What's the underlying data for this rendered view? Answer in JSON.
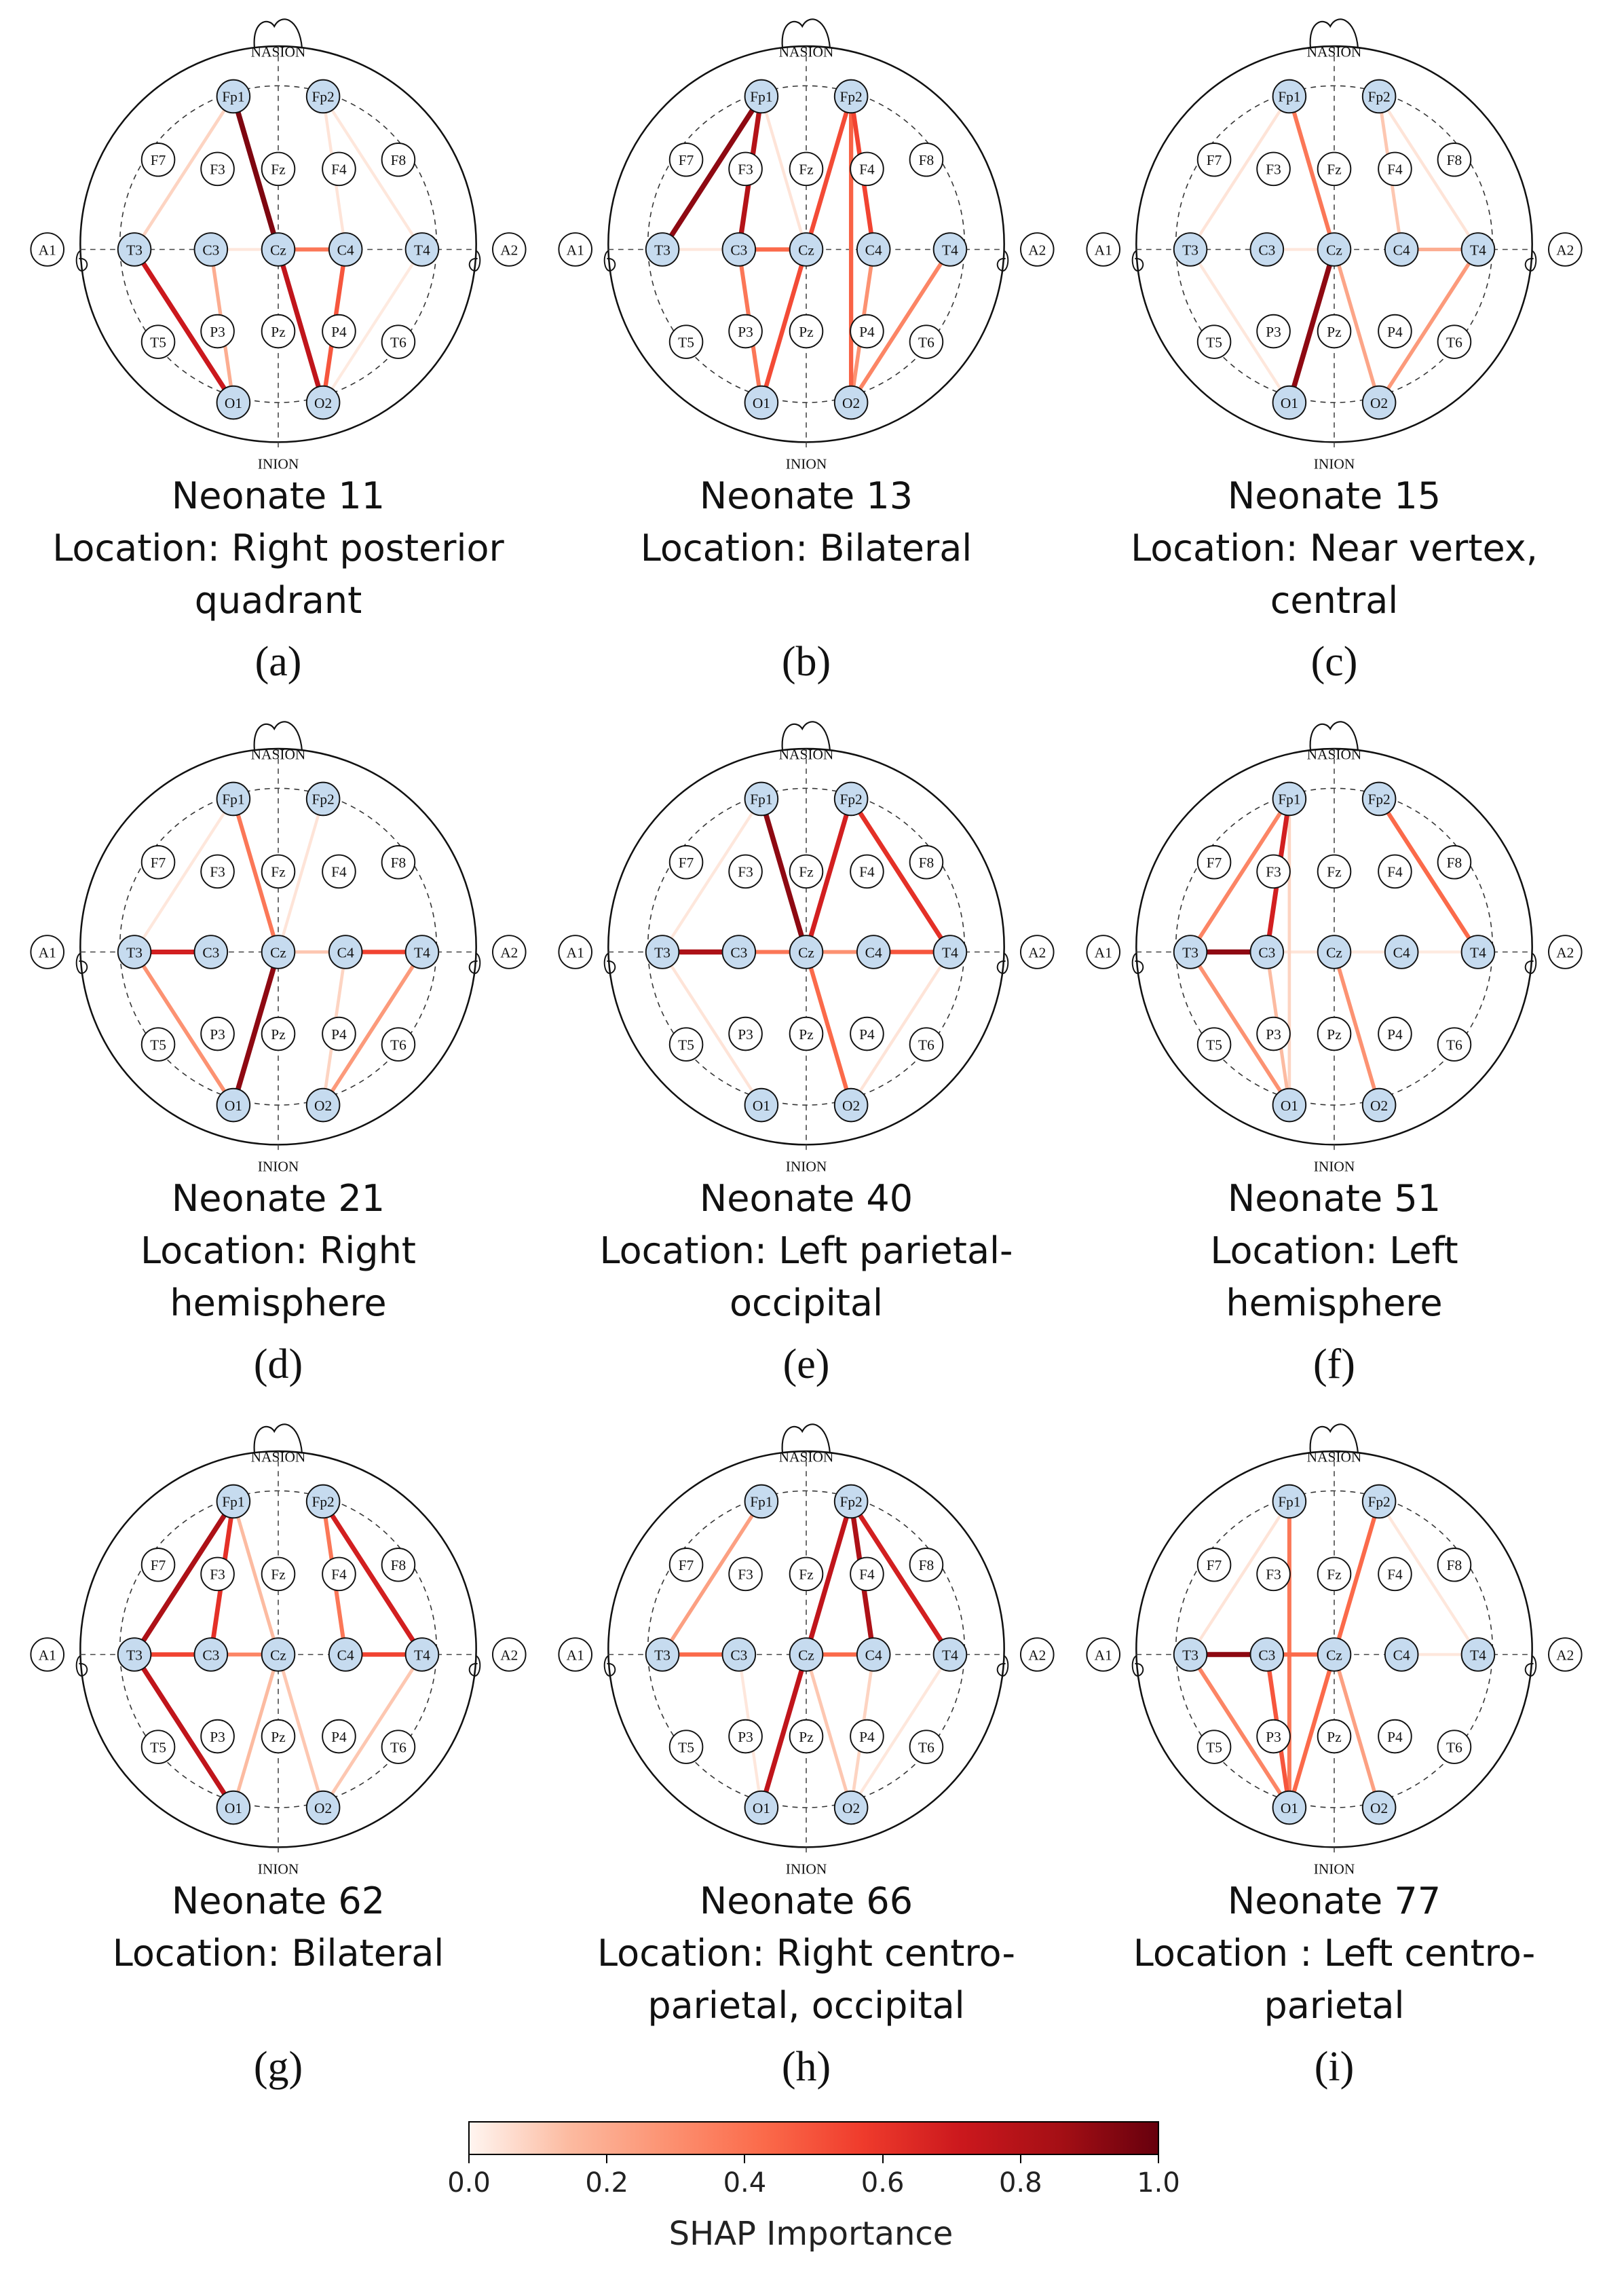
{
  "colors": {
    "active_electrode": "#c6dbef",
    "passive_electrode": "#ffffff",
    "scale_low": "#fff5f0",
    "scale_mid": "#fb6a4a",
    "scale_high": "#67000d"
  },
  "landmarks": {
    "nasion": "NASION",
    "inion": "INION"
  },
  "electrodes": [
    {
      "id": "Fp1",
      "label": "Fp1"
    },
    {
      "id": "Fp2",
      "label": "Fp2"
    },
    {
      "id": "F7",
      "label": "F7"
    },
    {
      "id": "F3",
      "label": "F3"
    },
    {
      "id": "Fz",
      "label": "Fz"
    },
    {
      "id": "F4",
      "label": "F4"
    },
    {
      "id": "F8",
      "label": "F8"
    },
    {
      "id": "A1",
      "label": "A1"
    },
    {
      "id": "T3",
      "label": "T3"
    },
    {
      "id": "C3",
      "label": "C3"
    },
    {
      "id": "Cz",
      "label": "Cz"
    },
    {
      "id": "C4",
      "label": "C4"
    },
    {
      "id": "T4",
      "label": "T4"
    },
    {
      "id": "A2",
      "label": "A2"
    },
    {
      "id": "T5",
      "label": "T5"
    },
    {
      "id": "P3",
      "label": "P3"
    },
    {
      "id": "Pz",
      "label": "Pz"
    },
    {
      "id": "P4",
      "label": "P4"
    },
    {
      "id": "T6",
      "label": "T6"
    },
    {
      "id": "O1",
      "label": "O1"
    },
    {
      "id": "O2",
      "label": "O2"
    }
  ],
  "active_electrodes": [
    "Fp1",
    "Fp2",
    "T3",
    "C3",
    "Cz",
    "C4",
    "T4",
    "O1",
    "O2"
  ],
  "panels": [
    {
      "id": "a",
      "sublabel": "(a)",
      "caption": [
        "Neonate 11",
        "Location: Right posterior",
        "quadrant"
      ],
      "edges": [
        {
          "from": "Fp1",
          "to": "Cz",
          "shap": 0.97
        },
        {
          "from": "Fp1",
          "to": "O2",
          "shap": 0.85
        },
        {
          "from": "T3",
          "to": "O1",
          "shap": 0.82
        },
        {
          "from": "C4",
          "to": "O2",
          "shap": 0.65
        },
        {
          "from": "Cz",
          "to": "C4",
          "shap": 0.55
        },
        {
          "from": "C3",
          "to": "O1",
          "shap": 0.35
        },
        {
          "from": "Fp1",
          "to": "T3",
          "shap": 0.2
        },
        {
          "from": "Fp2",
          "to": "C4",
          "shap": 0.12
        },
        {
          "from": "Fp2",
          "to": "T4",
          "shap": 0.1
        },
        {
          "from": "C3",
          "to": "Cz",
          "shap": 0.1
        },
        {
          "from": "T4",
          "to": "O2",
          "shap": 0.08
        }
      ]
    },
    {
      "id": "b",
      "sublabel": "(b)",
      "caption": [
        "Neonate 13",
        "Location: Bilateral"
      ],
      "edges": [
        {
          "from": "Fp1",
          "to": "T3",
          "shap": 0.95
        },
        {
          "from": "Fp1",
          "to": "C3",
          "shap": 0.88
        },
        {
          "from": "Fp2",
          "to": "C4",
          "shap": 0.7
        },
        {
          "from": "Fp2",
          "to": "O1",
          "shap": 0.68
        },
        {
          "from": "Fp2",
          "to": "O2",
          "shap": 0.62
        },
        {
          "from": "C3",
          "to": "Cz",
          "shap": 0.6
        },
        {
          "from": "C3",
          "to": "O1",
          "shap": 0.55
        },
        {
          "from": "T4",
          "to": "O2",
          "shap": 0.5
        },
        {
          "from": "C4",
          "to": "O2",
          "shap": 0.45
        },
        {
          "from": "Fp1",
          "to": "Cz",
          "shap": 0.12
        },
        {
          "from": "T3",
          "to": "C3",
          "shap": 0.1
        }
      ]
    },
    {
      "id": "c",
      "sublabel": "(c)",
      "caption": [
        "Neonate 15",
        "Location: Near vertex,",
        "central"
      ],
      "edges": [
        {
          "from": "Cz",
          "to": "O1",
          "shap": 0.95
        },
        {
          "from": "Fp1",
          "to": "Cz",
          "shap": 0.55
        },
        {
          "from": "T4",
          "to": "O2",
          "shap": 0.42
        },
        {
          "from": "Cz",
          "to": "O2",
          "shap": 0.38
        },
        {
          "from": "C4",
          "to": "T4",
          "shap": 0.35
        },
        {
          "from": "Fp2",
          "to": "C4",
          "shap": 0.25
        },
        {
          "from": "Fp1",
          "to": "T3",
          "shap": 0.12
        },
        {
          "from": "C3",
          "to": "Cz",
          "shap": 0.1
        },
        {
          "from": "T3",
          "to": "O1",
          "shap": 0.1
        },
        {
          "from": "Fp2",
          "to": "T4",
          "shap": 0.12
        }
      ]
    },
    {
      "id": "d",
      "sublabel": "(d)",
      "caption": [
        "Neonate 21",
        "Location: Right",
        "hemisphere"
      ],
      "edges": [
        {
          "from": "Cz",
          "to": "O1",
          "shap": 0.95
        },
        {
          "from": "T3",
          "to": "C3",
          "shap": 0.8
        },
        {
          "from": "C4",
          "to": "T4",
          "shap": 0.7
        },
        {
          "from": "Fp1",
          "to": "Cz",
          "shap": 0.55
        },
        {
          "from": "T3",
          "to": "O1",
          "shap": 0.45
        },
        {
          "from": "T4",
          "to": "O2",
          "shap": 0.42
        },
        {
          "from": "Cz",
          "to": "C4",
          "shap": 0.25
        },
        {
          "from": "C4",
          "to": "O2",
          "shap": 0.2
        },
        {
          "from": "Fp2",
          "to": "Cz",
          "shap": 0.12
        },
        {
          "from": "Fp1",
          "to": "T3",
          "shap": 0.1
        }
      ]
    },
    {
      "id": "e",
      "sublabel": "(e)",
      "caption": [
        "Neonate 40",
        "Location: Left parietal-",
        "occipital"
      ],
      "edges": [
        {
          "from": "T3",
          "to": "C3",
          "shap": 0.9
        },
        {
          "from": "Fp1",
          "to": "Cz",
          "shap": 0.95
        },
        {
          "from": "Fp2",
          "to": "T4",
          "shap": 0.75
        },
        {
          "from": "Fp2",
          "to": "Cz",
          "shap": 0.8
        },
        {
          "from": "C4",
          "to": "T4",
          "shap": 0.65
        },
        {
          "from": "Cz",
          "to": "O2",
          "shap": 0.6
        },
        {
          "from": "C3",
          "to": "Cz",
          "shap": 0.55
        },
        {
          "from": "Cz",
          "to": "C4",
          "shap": 0.45
        },
        {
          "from": "Fp1",
          "to": "O2",
          "shap": 0.5
        },
        {
          "from": "T3",
          "to": "O1",
          "shap": 0.12
        },
        {
          "from": "T4",
          "to": "O2",
          "shap": 0.12
        },
        {
          "from": "Fp1",
          "to": "T3",
          "shap": 0.1
        }
      ]
    },
    {
      "id": "f",
      "sublabel": "(f)",
      "caption": [
        "Neonate 51",
        "Location: Left",
        "hemisphere"
      ],
      "edges": [
        {
          "from": "T3",
          "to": "C3",
          "shap": 0.95
        },
        {
          "from": "Fp1",
          "to": "C3",
          "shap": 0.8
        },
        {
          "from": "Fp1",
          "to": "T3",
          "shap": 0.5
        },
        {
          "from": "Fp2",
          "to": "T4",
          "shap": 0.6
        },
        {
          "from": "T3",
          "to": "O1",
          "shap": 0.45
        },
        {
          "from": "Cz",
          "to": "O2",
          "shap": 0.45
        },
        {
          "from": "C3",
          "to": "O1",
          "shap": 0.3
        },
        {
          "from": "Fp1",
          "to": "O1",
          "shap": 0.2
        },
        {
          "from": "C3",
          "to": "Cz",
          "shap": 0.12
        },
        {
          "from": "Cz",
          "to": "C4",
          "shap": 0.1
        },
        {
          "from": "C4",
          "to": "T4",
          "shap": 0.08
        }
      ]
    },
    {
      "id": "g",
      "sublabel": "(g)",
      "caption": [
        "Neonate 62",
        "Location: Bilateral"
      ],
      "edges": [
        {
          "from": "Fp1",
          "to": "T3",
          "shap": 0.9
        },
        {
          "from": "T3",
          "to": "O1",
          "shap": 0.85
        },
        {
          "from": "Fp2",
          "to": "T4",
          "shap": 0.8
        },
        {
          "from": "C4",
          "to": "T4",
          "shap": 0.7
        },
        {
          "from": "T3",
          "to": "C3",
          "shap": 0.7
        },
        {
          "from": "Fp1",
          "to": "C3",
          "shap": 0.75
        },
        {
          "from": "Fp2",
          "to": "C4",
          "shap": 0.55
        },
        {
          "from": "C3",
          "to": "Cz",
          "shap": 0.5
        },
        {
          "from": "Cz",
          "to": "O2",
          "shap": 0.25
        },
        {
          "from": "T4",
          "to": "O2",
          "shap": 0.25
        },
        {
          "from": "Fp1",
          "to": "Cz",
          "shap": 0.3
        },
        {
          "from": "Cz",
          "to": "O1",
          "shap": 0.3
        }
      ]
    },
    {
      "id": "h",
      "sublabel": "(h)",
      "caption": [
        "Neonate 66",
        "Location: Right centro-",
        "parietal, occipital"
      ],
      "edges": [
        {
          "from": "Fp2",
          "to": "O1",
          "shap": 0.85
        },
        {
          "from": "Fp2",
          "to": "C4",
          "shap": 0.9
        },
        {
          "from": "Fp2",
          "to": "T4",
          "shap": 0.8
        },
        {
          "from": "T3",
          "to": "C3",
          "shap": 0.6
        },
        {
          "from": "Cz",
          "to": "C4",
          "shap": 0.6
        },
        {
          "from": "Fp1",
          "to": "T3",
          "shap": 0.4
        },
        {
          "from": "Fp2",
          "to": "Cz",
          "shap": 0.3
        },
        {
          "from": "Cz",
          "to": "O2",
          "shap": 0.25
        },
        {
          "from": "C4",
          "to": "O2",
          "shap": 0.2
        },
        {
          "from": "C3",
          "to": "O1",
          "shap": 0.1
        },
        {
          "from": "T4",
          "to": "O2",
          "shap": 0.1
        }
      ]
    },
    {
      "id": "i",
      "sublabel": "(i)",
      "caption": [
        "Neonate 77",
        "Location : Left centro-",
        "parietal"
      ],
      "edges": [
        {
          "from": "T3",
          "to": "C3",
          "shap": 0.95
        },
        {
          "from": "C3",
          "to": "Cz",
          "shap": 0.6
        },
        {
          "from": "Fp1",
          "to": "O1",
          "shap": 0.55
        },
        {
          "from": "Fp2",
          "to": "O1",
          "shap": 0.6
        },
        {
          "from": "T3",
          "to": "O1",
          "shap": 0.5
        },
        {
          "from": "C3",
          "to": "O1",
          "shap": 0.65
        },
        {
          "from": "Cz",
          "to": "O2",
          "shap": 0.4
        },
        {
          "from": "Fp1",
          "to": "T3",
          "shap": 0.12
        },
        {
          "from": "C4",
          "to": "T4",
          "shap": 0.1
        },
        {
          "from": "Fp2",
          "to": "T4",
          "shap": 0.1
        }
      ]
    }
  ],
  "colorbar": {
    "title": "SHAP Importance",
    "min": 0.0,
    "max": 1.0,
    "ticks": [
      "0.0",
      "0.2",
      "0.4",
      "0.6",
      "0.8",
      "1.0"
    ]
  }
}
